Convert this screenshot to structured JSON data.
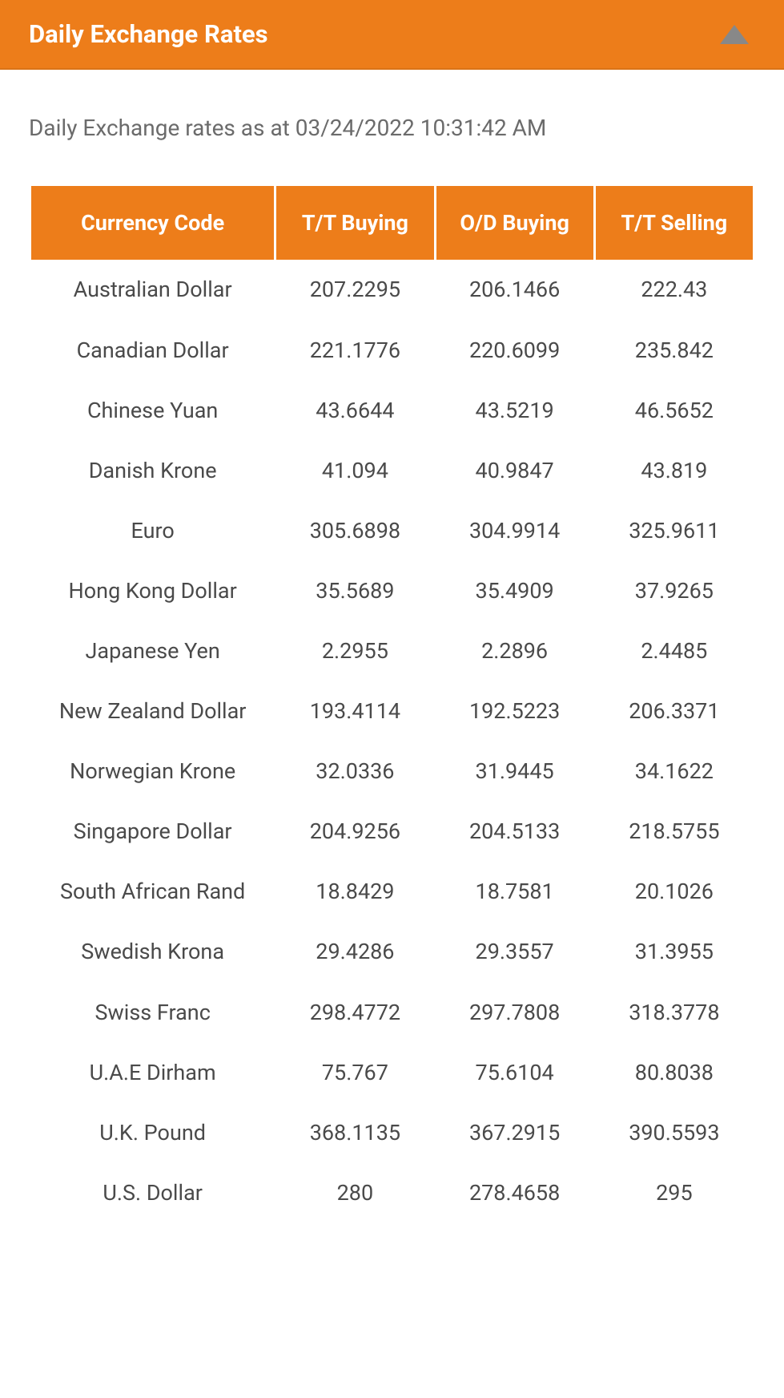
{
  "header": {
    "title": "Daily Exchange Rates"
  },
  "timestamp": {
    "prefix": "Daily Exchange rates as at ",
    "value": "03/24/2022 10:31:42 AM"
  },
  "colors": {
    "accent": "#ed7d1a",
    "header_text": "#ffffff",
    "body_text": "#4a4a4a",
    "muted_text": "#6b6b6b",
    "background": "#ffffff",
    "collapse_arrow": "#888888"
  },
  "table": {
    "columns": [
      "Currency Code",
      "T/T Buying",
      "O/D Buying",
      "T/T Selling"
    ],
    "rows": [
      [
        "Australian Dollar",
        "207.2295",
        "206.1466",
        "222.43"
      ],
      [
        "Canadian Dollar",
        "221.1776",
        "220.6099",
        "235.842"
      ],
      [
        "Chinese Yuan",
        "43.6644",
        "43.5219",
        "46.5652"
      ],
      [
        "Danish Krone",
        "41.094",
        "40.9847",
        "43.819"
      ],
      [
        "Euro",
        "305.6898",
        "304.9914",
        "325.9611"
      ],
      [
        "Hong Kong Dollar",
        "35.5689",
        "35.4909",
        "37.9265"
      ],
      [
        "Japanese Yen",
        "2.2955",
        "2.2896",
        "2.4485"
      ],
      [
        "New Zealand Dollar",
        "193.4114",
        "192.5223",
        "206.3371"
      ],
      [
        "Norwegian Krone",
        "32.0336",
        "31.9445",
        "34.1622"
      ],
      [
        "Singapore Dollar",
        "204.9256",
        "204.5133",
        "218.5755"
      ],
      [
        "South African Rand",
        "18.8429",
        "18.7581",
        "20.1026"
      ],
      [
        "Swedish Krona",
        "29.4286",
        "29.3557",
        "31.3955"
      ],
      [
        "Swiss Franc",
        "298.4772",
        "297.7808",
        "318.3778"
      ],
      [
        "U.A.E Dirham",
        "75.767",
        "75.6104",
        "80.8038"
      ],
      [
        "U.K. Pound",
        "368.1135",
        "367.2915",
        "390.5593"
      ],
      [
        "U.S. Dollar",
        "280",
        "278.4658",
        "295"
      ]
    ]
  }
}
